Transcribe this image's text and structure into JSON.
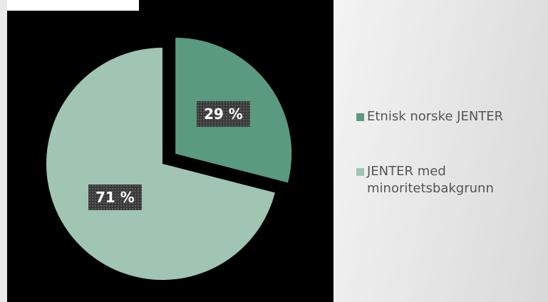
{
  "chart_data": {
    "type": "pie",
    "values": [
      29,
      71
    ],
    "labels": [
      "29 %",
      "71 %"
    ],
    "legend": [
      "Etnisk norske JENTER",
      "JENTER med minoritetsbakgrunn"
    ],
    "legend_lines": [
      [
        "Etnisk norske JENTER"
      ],
      [
        "JENTER med",
        "minoritetsbakgrunn"
      ]
    ],
    "colors": [
      "#5a9a7e",
      "#a0c5b2"
    ],
    "exploded_slice": 0,
    "legend_position": "right"
  },
  "colors": {
    "background": "#000000",
    "label_bg": "#3a3a3a",
    "legend_text": "#555555"
  }
}
